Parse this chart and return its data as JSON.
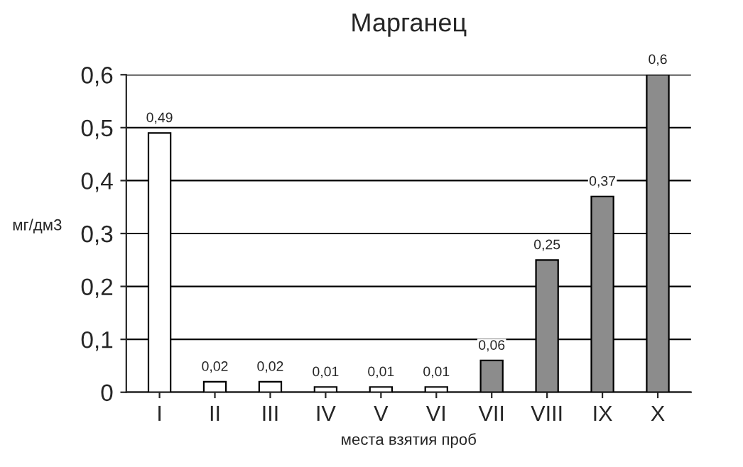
{
  "chart_data": {
    "type": "bar",
    "title": "Марганец",
    "xlabel": "места взятия проб",
    "ylabel": "мг/дм3",
    "categories": [
      "I",
      "II",
      "III",
      "IV",
      "V",
      "VI",
      "VII",
      "VIII",
      "IX",
      "X"
    ],
    "values": [
      0.49,
      0.02,
      0.02,
      0.01,
      0.01,
      0.01,
      0.06,
      0.25,
      0.37,
      0.6
    ],
    "value_labels": [
      "0,49",
      "0,02",
      "0,02",
      "0,01",
      "0,01",
      "0,01",
      "0,06",
      "0,25",
      "0,37",
      "0,6"
    ],
    "colors": [
      "#ffffff",
      "#ffffff",
      "#ffffff",
      "#ffffff",
      "#ffffff",
      "#ffffff",
      "#8c8c8c",
      "#8c8c8c",
      "#8c8c8c",
      "#8c8c8c"
    ],
    "ylim": [
      0,
      0.6
    ],
    "yticks": [
      {
        "value": 0,
        "label": "0"
      },
      {
        "value": 0.1,
        "label": "0,1"
      },
      {
        "value": 0.2,
        "label": "0,2"
      },
      {
        "value": 0.3,
        "label": "0,3"
      },
      {
        "value": 0.4,
        "label": "0,4"
      },
      {
        "value": 0.5,
        "label": "0,5"
      },
      {
        "value": 0.6,
        "label": "0,6"
      }
    ],
    "grid": "y"
  }
}
